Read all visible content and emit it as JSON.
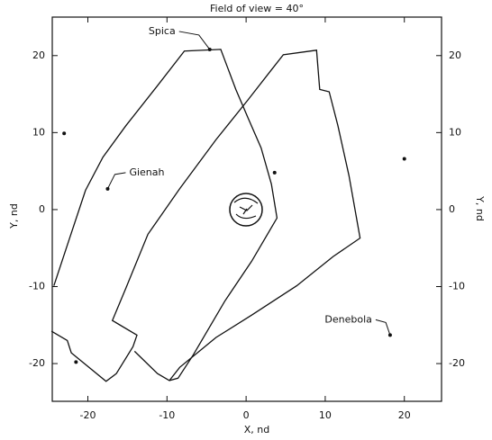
{
  "chart_data": {
    "type": "line",
    "title": "Field of view = 40°",
    "xlabel": "X, nd",
    "ylabel": "Y, nd",
    "xlim": [
      -24.5,
      24.7
    ],
    "ylim": [
      -24.9,
      25
    ],
    "xticks": [
      -20,
      -10,
      0,
      10,
      20
    ],
    "yticks": [
      -20,
      -10,
      0,
      10,
      20
    ],
    "color": "#111111",
    "series": [
      {
        "x": [
          -24.3,
          -22.3,
          -20.3,
          -18.1,
          -15.2,
          -11.2,
          -7.8,
          -3.2,
          -1.3,
          0.2,
          1.9,
          3.2,
          3.9,
          0.7,
          -2.7,
          -6.7,
          -8.6,
          -9.7,
          -11.2,
          -14.1
        ],
        "values": [
          -9.9,
          -3.7,
          2.5,
          6.8,
          10.9,
          16.1,
          20.6,
          20.8,
          15.6,
          12.0,
          8.0,
          3.3,
          -1.1,
          -6.7,
          -11.9,
          -18.9,
          -21.9,
          -22.2,
          -21.3,
          -18.4
        ]
      },
      {
        "x": [
          -24.6,
          -22.6,
          -22.1,
          -17.7,
          -16.4,
          -14.3,
          -13.8,
          -16.9,
          -15.2,
          -12.4,
          -8.4,
          -3.8,
          0.2,
          3.0,
          4.7,
          8.9,
          9.3,
          10.5,
          11.6,
          13.0,
          14.4,
          11.0,
          6.4,
          0.7,
          -3.8,
          -8.4,
          -9.7
        ],
        "values": [
          -15.8,
          -17.0,
          -18.6,
          -22.3,
          -21.3,
          -17.8,
          -16.3,
          -14.4,
          -10.2,
          -3.2,
          2.7,
          9.1,
          14.2,
          17.9,
          20.1,
          20.7,
          15.6,
          15.3,
          10.9,
          4.4,
          -3.7,
          -6.1,
          -9.9,
          -13.7,
          -16.6,
          -20.5,
          -22.2
        ]
      }
    ],
    "points": {
      "x": [
        -4.6,
        -17.5,
        18.2,
        -23.0,
        3.6,
        20.0,
        -21.5
      ],
      "y": [
        20.8,
        2.7,
        -16.3,
        9.9,
        4.8,
        6.6,
        -19.8
      ],
      "labels": [
        "Spica",
        "Gienah",
        "Denebola",
        null,
        null,
        null,
        null
      ]
    }
  }
}
